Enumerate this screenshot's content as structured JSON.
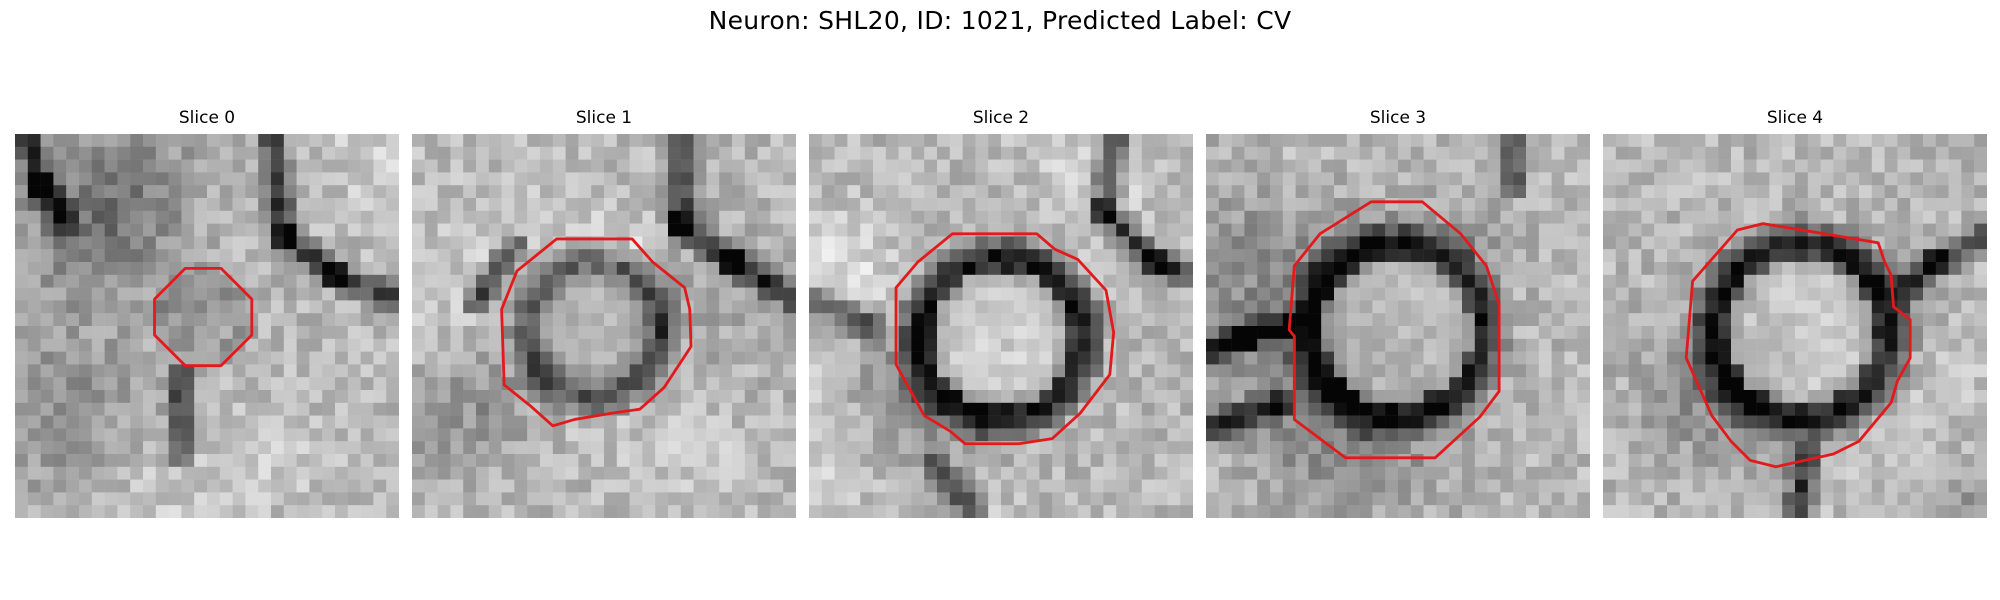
{
  "figure": {
    "title": "Neuron: SHL20, ID: 1021, Predicted Label: CV",
    "contour_color": "#e31a1c",
    "colormap": "grayscale"
  },
  "panels": [
    {
      "title": "Slice 0"
    },
    {
      "title": "Slice 1"
    },
    {
      "title": "Slice 2"
    },
    {
      "title": "Slice 3"
    },
    {
      "title": "Slice 4"
    }
  ]
}
